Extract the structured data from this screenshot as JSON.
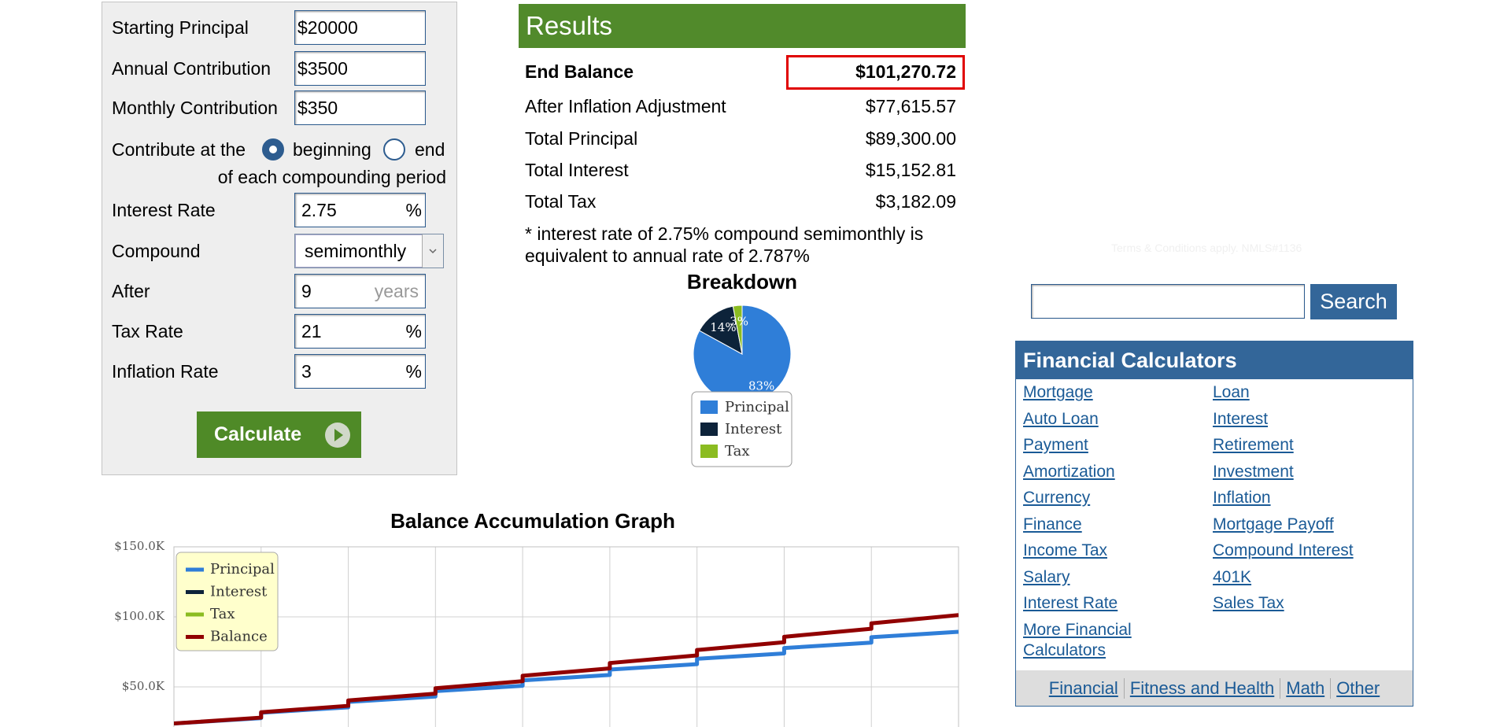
{
  "form": {
    "fields": [
      {
        "label": "Starting Principal",
        "value": "$20000"
      },
      {
        "label": "Annual Contribution",
        "value": "$3500"
      },
      {
        "label": "Monthly Contribution",
        "value": "$350"
      },
      {
        "label": "Interest Rate",
        "value": "2.75",
        "unit": "%"
      },
      {
        "label": "Compound",
        "selected": "semimonthly"
      },
      {
        "label": "After",
        "value": "9",
        "hint": "years"
      },
      {
        "label": "Tax Rate",
        "value": "21",
        "unit": "%"
      },
      {
        "label": "Inflation Rate",
        "value": "3",
        "unit": "%"
      }
    ],
    "contribute": {
      "label": "Contribute at the",
      "options": [
        "beginning",
        "end"
      ],
      "suffix": "of each compounding period"
    },
    "calculate_button": "Calculate"
  },
  "results": {
    "title": "Results",
    "rows": [
      {
        "label": "End Balance",
        "value": "$101,270.72"
      },
      {
        "label": "After Inflation Adjustment",
        "value": "$77,615.57"
      },
      {
        "label": "Total Principal",
        "value": "$89,300.00"
      },
      {
        "label": "Total Interest",
        "value": "$15,152.81"
      },
      {
        "label": "Total Tax",
        "value": "$3,182.09"
      }
    ],
    "note": [
      "* interest rate of 2.75% compound semimonthly is",
      "equivalent to annual rate of 2.787%"
    ]
  },
  "breakdown_chart": {
    "type": "pie",
    "title": "Breakdown",
    "categories": [
      "Principal",
      "Interest",
      "Tax"
    ],
    "values": [
      83,
      14,
      3
    ],
    "value_labels": [
      "83%",
      "14%",
      "3%"
    ],
    "colors": [
      "#2f7ed8",
      "#0d233a",
      "#8bbc21"
    ]
  },
  "balance_chart": {
    "type": "line",
    "title": "Balance Accumulation Graph",
    "x": [
      0,
      1,
      1,
      2,
      2,
      3,
      3,
      4,
      4,
      5,
      5,
      6,
      6,
      7,
      7,
      8,
      8,
      9
    ],
    "xlim": [
      0,
      9
    ],
    "xticks": [
      0,
      1,
      2,
      3,
      4,
      5,
      6,
      7,
      8,
      9
    ],
    "ylim": [
      0,
      150000
    ],
    "yticks": [
      {
        "value": 50000,
        "label": "$50.0K"
      },
      {
        "value": 100000,
        "label": "$100.0K"
      },
      {
        "value": 150000,
        "label": "$150.0K"
      }
    ],
    "grid": true,
    "legend": "upper left",
    "series": [
      {
        "name": "Principal",
        "color": "#2f7ed8",
        "values": [
          23850,
          27700,
          31550,
          35400,
          39250,
          43100,
          46950,
          50800,
          54650,
          58500,
          62350,
          66200,
          70050,
          73900,
          77750,
          81600,
          85450,
          89300
        ]
      },
      {
        "name": "Interest",
        "color": "#0d233a"
      },
      {
        "name": "Tax",
        "color": "#8bbc21"
      },
      {
        "name": "Balance",
        "color": "#910000",
        "values": [
          23850,
          28055,
          31905,
          36480,
          40330,
          45160,
          49010,
          54070,
          57920,
          63180,
          67030,
          72460,
          76310,
          81910,
          85760,
          91520,
          95370,
          101270.72
        ]
      }
    ]
  },
  "sidebar": {
    "notice": "Terms & Conditions apply. NMLS#1136",
    "search_button": "Search",
    "calculators": {
      "title": "Financial Calculators",
      "left": [
        "Mortgage",
        "Auto Loan",
        "Payment",
        "Amortization",
        "Currency",
        "Finance",
        "Income Tax",
        "Salary",
        "Interest Rate",
        "More Financial Calculators"
      ],
      "right": [
        "Loan",
        "Interest",
        "Retirement",
        "Investment",
        "Inflation",
        "Mortgage Payoff",
        "Compound Interest",
        "401K",
        "Sales Tax"
      ]
    },
    "footer_links": [
      "Financial",
      "Fitness and Health",
      "Math",
      "Other"
    ]
  }
}
